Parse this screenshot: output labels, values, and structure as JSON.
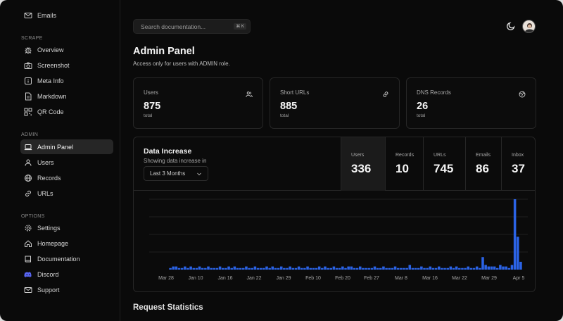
{
  "sidebar": {
    "top_item": {
      "label": "Emails",
      "icon": "mail-icon"
    },
    "sections": [
      {
        "label": "SCRAPE",
        "items": [
          {
            "label": "Overview",
            "icon": "bug-icon"
          },
          {
            "label": "Screenshot",
            "icon": "camera-icon"
          },
          {
            "label": "Meta Info",
            "icon": "info-icon"
          },
          {
            "label": "Markdown",
            "icon": "file-icon"
          },
          {
            "label": "QR Code",
            "icon": "qr-icon"
          }
        ]
      },
      {
        "label": "ADMIN",
        "items": [
          {
            "label": "Admin Panel",
            "icon": "laptop-icon",
            "active": true
          },
          {
            "label": "Users",
            "icon": "users-icon"
          },
          {
            "label": "Records",
            "icon": "globe-icon"
          },
          {
            "label": "URLs",
            "icon": "link-icon"
          }
        ]
      },
      {
        "label": "OPTIONS",
        "items": [
          {
            "label": "Settings",
            "icon": "gear-icon"
          },
          {
            "label": "Homepage",
            "icon": "home-icon"
          },
          {
            "label": "Documentation",
            "icon": "book-icon"
          },
          {
            "label": "Discord",
            "icon": "discord-icon"
          },
          {
            "label": "Support",
            "icon": "mail-icon"
          }
        ]
      }
    ]
  },
  "search": {
    "placeholder": "Search documentation...",
    "shortcut": "⌘ K"
  },
  "page": {
    "title": "Admin Panel",
    "subtitle": "Access only for users with ADMIN role."
  },
  "cards": [
    {
      "label": "Users",
      "value": "875",
      "sub": "total",
      "icon": "users-icon"
    },
    {
      "label": "Short URLs",
      "value": "885",
      "sub": "total",
      "icon": "link-icon"
    },
    {
      "label": "DNS Records",
      "value": "26",
      "sub": "total",
      "icon": "globe-icon"
    }
  ],
  "panel": {
    "title": "Data Increase",
    "subtitle": "Showing data increase in",
    "range": "Last 3 Months",
    "stats": [
      {
        "label": "Users",
        "value": "336",
        "active": true
      },
      {
        "label": "Records",
        "value": "10"
      },
      {
        "label": "URLs",
        "value": "745"
      },
      {
        "label": "Emails",
        "value": "86"
      },
      {
        "label": "Inbox",
        "value": "37"
      }
    ]
  },
  "chart_data": {
    "type": "bar",
    "x_ticks": [
      "Mar 28",
      "Jan 10",
      "Jan 16",
      "Jan 22",
      "Jan 29",
      "Feb 10",
      "Feb 20",
      "Feb 27",
      "Mar 8",
      "Mar 16",
      "Mar 22",
      "Mar 29",
      "Apr 5"
    ],
    "values": [
      1,
      2,
      2,
      1,
      1,
      2,
      1,
      2,
      1,
      1,
      2,
      1,
      1,
      2,
      1,
      1,
      1,
      2,
      1,
      1,
      2,
      1,
      2,
      1,
      1,
      1,
      2,
      1,
      1,
      2,
      1,
      1,
      1,
      2,
      1,
      2,
      1,
      1,
      2,
      1,
      1,
      2,
      1,
      1,
      2,
      1,
      1,
      2,
      1,
      1,
      1,
      2,
      1,
      2,
      1,
      1,
      2,
      1,
      1,
      2,
      1,
      2,
      2,
      1,
      1,
      2,
      1,
      1,
      1,
      1,
      2,
      1,
      1,
      2,
      1,
      1,
      1,
      2,
      1,
      1,
      1,
      1,
      3,
      1,
      1,
      1,
      2,
      1,
      1,
      2,
      1,
      1,
      2,
      1,
      1,
      1,
      2,
      1,
      2,
      1,
      1,
      1,
      2,
      1,
      1,
      2,
      1,
      8,
      3,
      2,
      2,
      2,
      1,
      3,
      2,
      2,
      1,
      3,
      45,
      21,
      5
    ],
    "color": "#2b63e6",
    "grid": true
  },
  "footer": {
    "next_title": "Request Statistics"
  }
}
